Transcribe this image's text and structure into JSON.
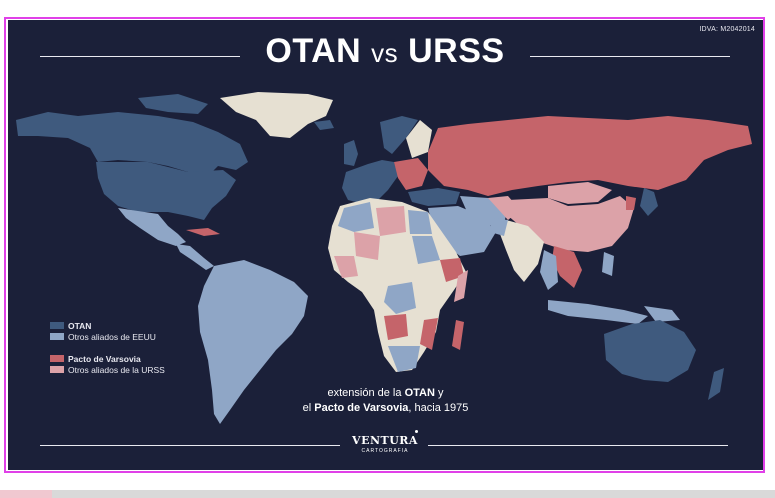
{
  "map_code": "IDVA: M2042014",
  "title": {
    "left": "OTAN",
    "middle": "vs",
    "right": "URSS"
  },
  "legend": [
    {
      "label": "OTAN",
      "color": "#3f5a7e",
      "bold": true
    },
    {
      "label": "Otros aliados de EEUU",
      "color": "#8fa6c6",
      "bold": false
    },
    {
      "label": "Pacto de Varsovia",
      "color": "#c5646a",
      "bold": true
    },
    {
      "label": "Otros aliados de la URSS",
      "color": "#dca2a8",
      "bold": false
    }
  ],
  "caption": {
    "line1_pre": "extensión de la ",
    "line1_bold": "OTAN",
    "line1_post": " y",
    "line2_pre": "el ",
    "line2_bold": "Pacto de Varsovia",
    "line2_post": ", hacia 1975"
  },
  "logo": {
    "brand": "VENTURA",
    "sub": "CARTOGRAFIA"
  },
  "colors": {
    "background": "#1b2039",
    "nato": "#3f5a7e",
    "us_allies": "#8fa6c6",
    "warsaw": "#c5646a",
    "soviet_allies": "#dca2a8",
    "neutral": "#e6e0d2"
  }
}
